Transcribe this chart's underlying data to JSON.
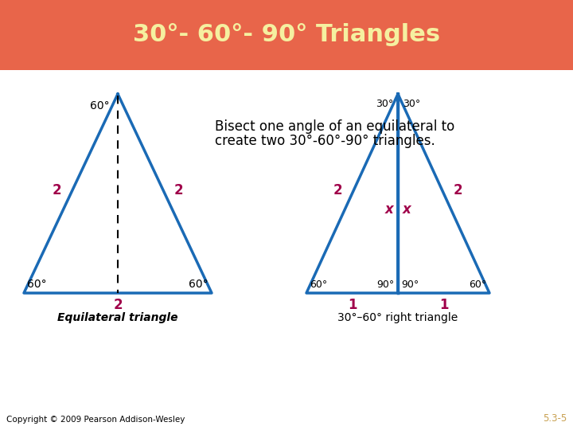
{
  "title": "30°- 60°- 90° Triangles",
  "title_bg": "#E8654A",
  "title_fg": "#F5F0A0",
  "subtitle_line1": "Bisect one angle of an equilateral to",
  "subtitle_line2": "create two 30°-60°-90° triangles.",
  "background": "#ffffff",
  "triangle_color": "#1a6ab5",
  "label_color_angle": "#000000",
  "label_color_side": "#a0004a",
  "copyright": "Copyright © 2009 Pearson Addison-Wesley",
  "page_num": "5.3-5"
}
